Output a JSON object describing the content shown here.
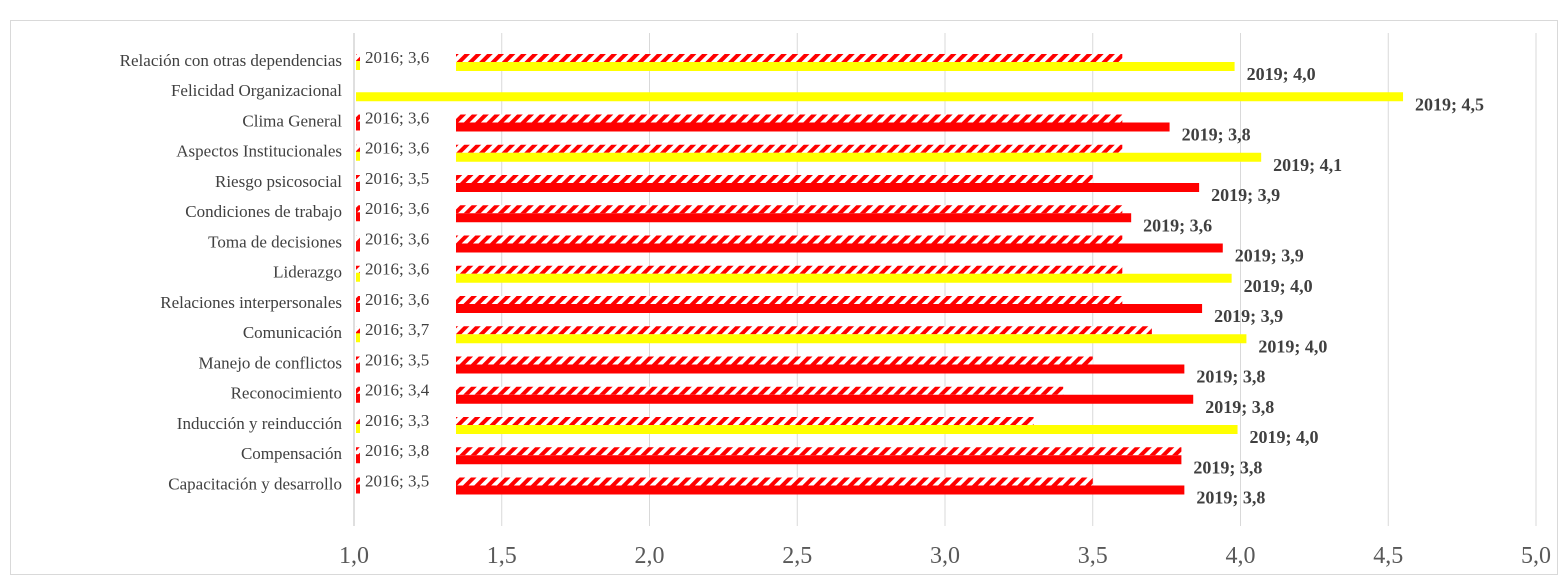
{
  "chart_data": {
    "type": "bar",
    "orientation": "horizontal",
    "title": "",
    "categories": [
      "Relación con otras dependencias",
      "Felicidad Organizacional",
      "Clima General",
      "Aspectos Institucionales",
      "Riesgo psicosocial",
      "Condiciones de trabajo",
      "Toma de decisiones",
      "Liderazgo",
      "Relaciones interpersonales",
      "Comunicación",
      "Manejo de conflictos",
      "Reconocimiento",
      "Inducción y reinducción",
      "Compensación",
      "Capacitación y desarrollo"
    ],
    "series": [
      {
        "name": "2016",
        "values": [
          3.6,
          null,
          3.6,
          3.6,
          3.5,
          3.6,
          3.6,
          3.6,
          3.6,
          3.7,
          3.5,
          3.4,
          3.3,
          3.8,
          3.5
        ],
        "labels": [
          "2016; 3,6",
          "",
          "2016; 3,6",
          "2016; 3,6",
          "2016; 3,5",
          "2016; 3,6",
          "2016; 3,6",
          "2016; 3,6",
          "2016; 3,6",
          "2016; 3,7",
          "2016; 3,5",
          "2016; 3,4",
          "2016; 3,3",
          "2016; 3,8",
          "2016; 3,5"
        ],
        "pattern": "hatched"
      },
      {
        "name": "2019",
        "values": [
          3.98,
          4.55,
          3.76,
          4.07,
          3.86,
          3.63,
          3.94,
          3.97,
          3.87,
          4.02,
          3.81,
          3.84,
          3.99,
          3.8,
          3.81
        ],
        "labels": [
          "2019; 4,0",
          "2019; 4,5",
          "2019; 3,8",
          "2019; 4,1",
          "2019; 3,9",
          "2019; 3,6",
          "2019; 3,9",
          "2019; 4,0",
          "2019; 3,9",
          "2019; 4,0",
          "2019; 3,8",
          "2019; 3,8",
          "2019; 4,0",
          "2019; 3,8",
          "2019; 3,8"
        ],
        "pattern": "solid"
      }
    ],
    "bar_colors": [
      "#FFFF00",
      "#FFFF00",
      "#FF0000",
      "#FFFF00",
      "#FF0000",
      "#FF0000",
      "#FF0000",
      "#FFFF00",
      "#FF0000",
      "#FFFF00",
      "#FF0000",
      "#FF0000",
      "#FFFF00",
      "#FF0000",
      "#FF0000"
    ],
    "xlim": [
      1.0,
      5.0
    ],
    "xticks": [
      "1,0",
      "1,5",
      "2,0",
      "2,5",
      "3,0",
      "3,5",
      "4,0",
      "4,5",
      "5,0"
    ],
    "xtick_values": [
      1.0,
      1.5,
      2.0,
      2.5,
      3.0,
      3.5,
      4.0,
      4.5,
      5.0
    ],
    "grid": "vertical",
    "legend": "none"
  }
}
